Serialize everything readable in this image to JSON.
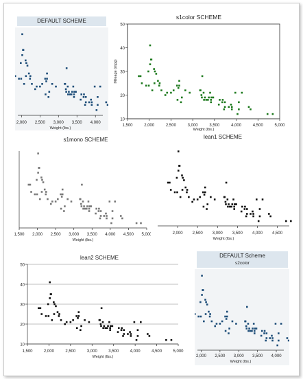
{
  "chart_data": [
    {
      "type": "scatter",
      "title": "DEFAULT SCHEME",
      "xlabel": "Weight (lbs.)",
      "ylabel": "",
      "xticks": [
        "2,000",
        "2,500",
        "3,000",
        "3,500",
        "4,000"
      ],
      "yticks": [],
      "color": "#1f4e79",
      "background": "#f2f4f6",
      "xlim": [
        1900,
        4200
      ],
      "ylim": [
        10,
        42
      ],
      "grid": false
    },
    {
      "type": "scatter",
      "title": "s1color SCHEME",
      "xlabel": "Weight (lbs.)",
      "ylabel": "Mileage (mpg)",
      "xticks": [
        "1,500",
        "2,000",
        "2,500",
        "3,000",
        "3,500",
        "4,000",
        "4,500",
        "5,000"
      ],
      "yticks": [
        "10",
        "20",
        "30",
        "40",
        "50"
      ],
      "color": "#1e7a1e",
      "background": "#ffffff",
      "xlim": [
        1500,
        5000
      ],
      "ylim": [
        10,
        50
      ],
      "grid": false
    },
    {
      "type": "scatter",
      "title": "s1mono SCHEME",
      "xlabel": "Weight (lbs.)",
      "ylabel": "",
      "xticks": [
        "1,500",
        "2,000",
        "2,500",
        "3,000",
        "3,500",
        "4,000",
        "4,500",
        "5,000"
      ],
      "yticks": [],
      "color": "#777777",
      "background": "#ffffff",
      "xlim": [
        1500,
        5000
      ],
      "ylim": [
        10,
        42
      ],
      "grid": false
    },
    {
      "type": "scatter",
      "title": "lean1 SCHEME",
      "xlabel": "Weight (lbs.)",
      "ylabel": "",
      "xticks": [
        "2,000",
        "2,500",
        "3,000",
        "3,500",
        "4,000",
        "4,500"
      ],
      "yticks": [],
      "color": "#111111",
      "background": "#ffffff",
      "xlim": [
        1500,
        4800
      ],
      "ylim": [
        10,
        42
      ],
      "grid": false
    },
    {
      "type": "scatter",
      "title": "lean2 SCHEME",
      "xlabel": "Weight (lbs.)",
      "ylabel": "",
      "xticks": [
        "1,500",
        "2,000",
        "2,500",
        "3,000",
        "3,500",
        "4,000",
        "4,500",
        "5,000"
      ],
      "yticks": [
        "10",
        "20",
        "30",
        "40",
        "50"
      ],
      "color": "#111111",
      "background": "#ffffff",
      "xlim": [
        1500,
        5000
      ],
      "ylim": [
        10,
        50
      ],
      "grid": true
    },
    {
      "type": "scatter",
      "title": "DEFAULT Scheme",
      "subtitle": "s2color",
      "xlabel": "Weight (lbs.)",
      "ylabel": "",
      "xticks": [
        "2,000",
        "2,500",
        "3,000",
        "3,500",
        "4,000"
      ],
      "yticks": [],
      "color": "#1f4e79",
      "background": "#f2f4f6",
      "xlim": [
        1900,
        4200
      ],
      "ylim": [
        10,
        42
      ],
      "grid": false
    }
  ],
  "points": [
    [
      1760,
      28
    ],
    [
      1800,
      28
    ],
    [
      1830,
      25
    ],
    [
      1930,
      24
    ],
    [
      1980,
      30
    ],
    [
      1990,
      24
    ],
    [
      2020,
      33
    ],
    [
      2040,
      35
    ],
    [
      2050,
      35
    ],
    [
      2070,
      22
    ],
    [
      2110,
      31
    ],
    [
      2120,
      25
    ],
    [
      2130,
      30
    ],
    [
      2160,
      29
    ],
    [
      2200,
      26
    ],
    [
      2230,
      24
    ],
    [
      2240,
      25
    ],
    [
      2280,
      22
    ],
    [
      2370,
      20
    ],
    [
      2410,
      21
    ],
    [
      2500,
      21
    ],
    [
      2560,
      22
    ],
    [
      2640,
      24
    ],
    [
      2650,
      18
    ],
    [
      2670,
      23
    ],
    [
      2690,
      24
    ],
    [
      2730,
      17
    ],
    [
      2750,
      19
    ],
    [
      2830,
      22
    ],
    [
      2930,
      21
    ],
    [
      3170,
      22
    ],
    [
      3180,
      22
    ],
    [
      3200,
      20
    ],
    [
      3210,
      19
    ],
    [
      3220,
      28
    ],
    [
      3250,
      21
    ],
    [
      3260,
      18
    ],
    [
      3280,
      19
    ],
    [
      3310,
      18
    ],
    [
      3350,
      18
    ],
    [
      3370,
      19
    ],
    [
      3400,
      21
    ],
    [
      3420,
      17
    ],
    [
      3430,
      19
    ],
    [
      3470,
      19
    ],
    [
      3600,
      16
    ],
    [
      3620,
      18
    ],
    [
      3680,
      17
    ],
    [
      3690,
      18
    ],
    [
      3720,
      14
    ],
    [
      3740,
      17
    ],
    [
      3830,
      15
    ],
    [
      3880,
      16
    ],
    [
      3900,
      14
    ],
    [
      3980,
      21
    ],
    [
      4030,
      12
    ],
    [
      4060,
      14
    ],
    [
      4130,
      21
    ],
    [
      4290,
      15
    ],
    [
      4330,
      14
    ],
    [
      4720,
      12
    ],
    [
      4840,
      12
    ],
    [
      4060,
      17
    ],
    [
      2020,
      41
    ],
    [
      2690,
      26
    ],
    [
      3420,
      18
    ],
    [
      3740,
      15
    ],
    [
      3900,
      15
    ]
  ]
}
